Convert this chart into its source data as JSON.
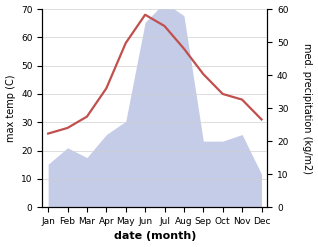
{
  "months": [
    "Jan",
    "Feb",
    "Mar",
    "Apr",
    "May",
    "Jun",
    "Jul",
    "Aug",
    "Sep",
    "Oct",
    "Nov",
    "Dec"
  ],
  "temperature": [
    26,
    28,
    32,
    42,
    58,
    68,
    64,
    56,
    47,
    40,
    38,
    31
  ],
  "precipitation": [
    13,
    18,
    15,
    22,
    26,
    56,
    62,
    58,
    20,
    20,
    22,
    10
  ],
  "temp_color": "#c0504d",
  "precip_fill_color": "#c5cce8",
  "temp_ylim": [
    0,
    70
  ],
  "precip_ylim": [
    0,
    60
  ],
  "xlabel": "date (month)",
  "ylabel_left": "max temp (C)",
  "ylabel_right": "med. precipitation (kg/m2)",
  "bg_color": "#ffffff",
  "grid_color": "#d0d0d0",
  "temp_linewidth": 1.6,
  "label_fontsize": 7,
  "tick_fontsize": 6.5,
  "xlabel_fontsize": 8
}
